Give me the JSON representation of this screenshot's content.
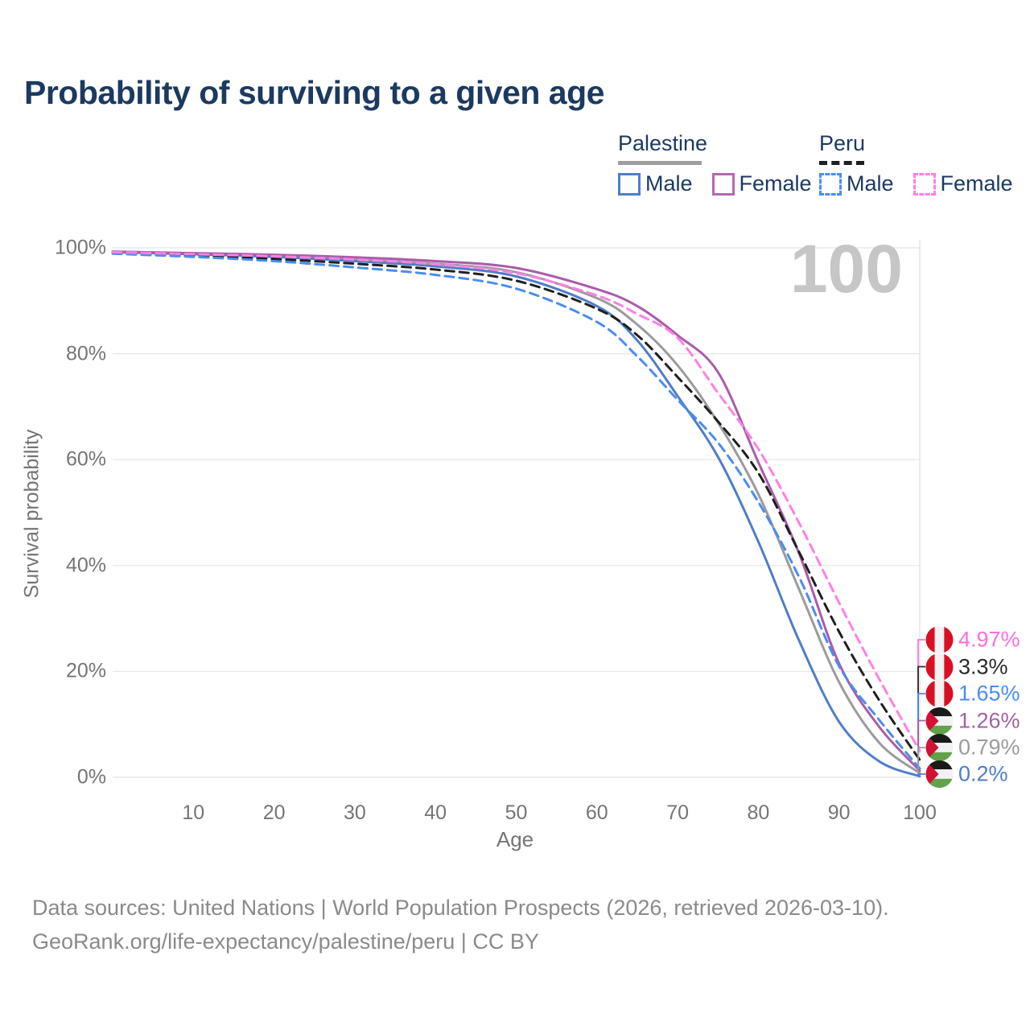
{
  "title": "Probability of surviving to a given age",
  "watermark": "100",
  "legend": {
    "groups": [
      {
        "label": "Palestine",
        "line_style": "solid",
        "line_color": "#9e9e9e",
        "items": [
          {
            "label": "Male",
            "color": "#4f7ec7",
            "style": "solid"
          },
          {
            "label": "Female",
            "color": "#b168ad",
            "style": "solid"
          }
        ]
      },
      {
        "label": "Peru",
        "line_style": "dashed",
        "line_color": "#1f1f1f",
        "items": [
          {
            "label": "Male",
            "color": "#4a8cf2",
            "style": "dashed"
          },
          {
            "label": "Female",
            "color": "#ff80e5",
            "style": "dashed"
          }
        ]
      }
    ]
  },
  "axes": {
    "y_label": "Survival probability",
    "x_label": "Age",
    "y_ticks": [
      {
        "label": "100%",
        "value": 100
      },
      {
        "label": "80%",
        "value": 80
      },
      {
        "label": "60%",
        "value": 60
      },
      {
        "label": "40%",
        "value": 40
      },
      {
        "label": "20%",
        "value": 20
      },
      {
        "label": "0%",
        "value": 0
      }
    ],
    "x_ticks": [
      10,
      20,
      30,
      40,
      50,
      60,
      70,
      80,
      90,
      100
    ],
    "x_range": [
      0,
      100
    ],
    "y_range": [
      0,
      100
    ],
    "grid": "horizontal"
  },
  "chart_data": {
    "type": "line",
    "title": "Probability of surviving to a given age",
    "xlabel": "Age",
    "ylabel": "Survival probability",
    "x": [
      0,
      10,
      20,
      30,
      40,
      50,
      60,
      65,
      70,
      75,
      80,
      85,
      90,
      95,
      100
    ],
    "series": [
      {
        "name": "Palestine Both sexes",
        "color": "#9b9b9b",
        "dash": "solid",
        "values": [
          99.2,
          98.9,
          98.5,
          97.8,
          97.0,
          95.4,
          90.5,
          85.5,
          77.8,
          67.0,
          53.5,
          35.7,
          18.0,
          6.5,
          0.79
        ]
      },
      {
        "name": "Palestine Male",
        "color": "#4f7ec7",
        "dash": "solid",
        "values": [
          99.2,
          98.8,
          98.3,
          97.5,
          96.5,
          94.6,
          89.0,
          82.5,
          72.0,
          60.5,
          44.5,
          26.0,
          10.5,
          3.0,
          0.2
        ]
      },
      {
        "name": "Palestine Female",
        "color": "#aa5ca9",
        "dash": "solid",
        "values": [
          99.3,
          99.0,
          98.7,
          98.2,
          97.5,
          96.2,
          92.2,
          89.0,
          83.5,
          76.5,
          59.5,
          42.5,
          21.5,
          9.5,
          1.26
        ]
      },
      {
        "name": "Peru Both sexes",
        "color": "#1f1f1f",
        "dash": "dashed",
        "values": [
          99.0,
          98.5,
          97.9,
          97.0,
          95.9,
          93.8,
          88.5,
          83.5,
          75.6,
          67.2,
          57.5,
          42.7,
          27.5,
          14.5,
          3.3
        ]
      },
      {
        "name": "Peru Male",
        "color": "#4a8cf2",
        "dash": "dashed",
        "values": [
          98.9,
          98.3,
          97.5,
          96.3,
          94.9,
          92.3,
          86.0,
          79.5,
          71.3,
          63.2,
          52.0,
          38.0,
          21.0,
          10.8,
          1.65
        ]
      },
      {
        "name": "Peru Female",
        "color": "#ff80e5",
        "dash": "dashed",
        "values": [
          99.2,
          98.8,
          98.4,
          97.8,
          96.9,
          95.2,
          91.0,
          87.5,
          83.0,
          72.6,
          62.0,
          48.2,
          33.0,
          18.5,
          4.97
        ]
      }
    ]
  },
  "end_labels": [
    {
      "value": "4.97%",
      "pct": 4.97,
      "color": "#ff6ee0",
      "flag": "peru"
    },
    {
      "value": "3.3%",
      "pct": 3.3,
      "color": "#2b2b2b",
      "flag": "peru"
    },
    {
      "value": "1.65%",
      "pct": 1.65,
      "color": "#4a8cf2",
      "flag": "peru"
    },
    {
      "value": "1.26%",
      "pct": 1.26,
      "color": "#a361a3",
      "flag": "palestine"
    },
    {
      "value": "0.79%",
      "pct": 0.79,
      "color": "#9b9b9b",
      "flag": "palestine"
    },
    {
      "value": "0.2%",
      "pct": 0.2,
      "color": "#4f7ec7",
      "flag": "palestine"
    }
  ],
  "flag_colors": {
    "peru_red": "#D91023",
    "peru_white": "#f2f2f2",
    "pal_black": "#1a1a1a",
    "pal_white": "#f2f2f2",
    "pal_green": "#62a24b",
    "pal_red": "#d31135"
  },
  "footer": {
    "line1": "Data sources: United Nations | World Population Prospects (2026, retrieved 2026-03-10).",
    "line2": "GeoRank.org/life-expectancy/palestine/peru | CC BY"
  }
}
